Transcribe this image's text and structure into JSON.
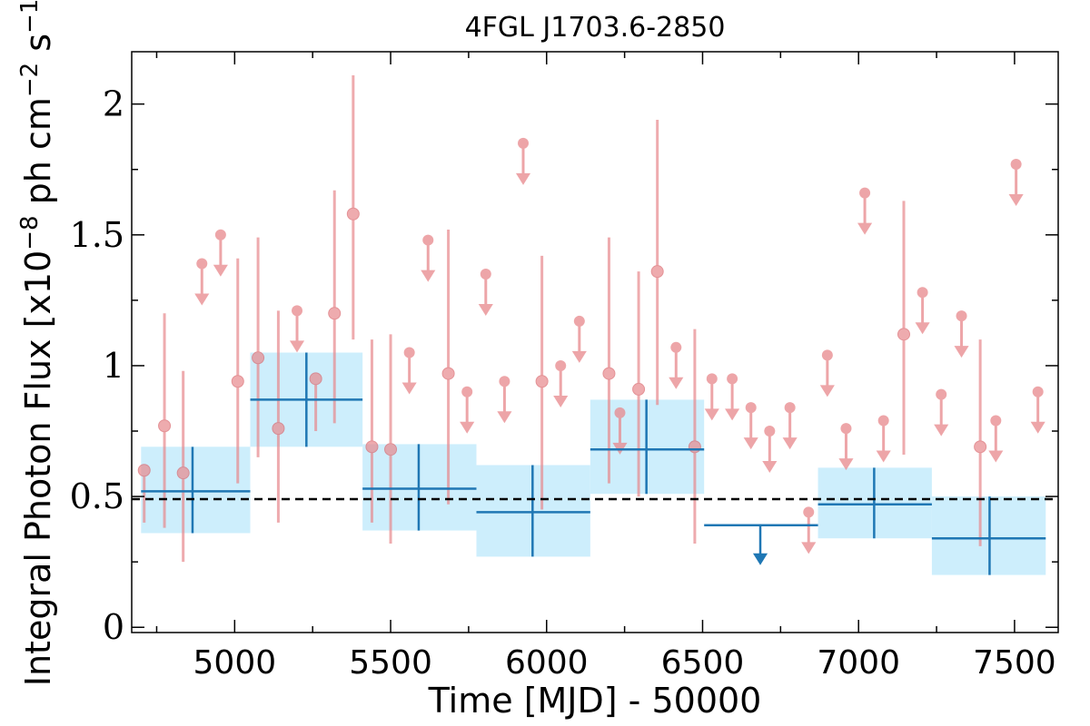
{
  "chart_data": {
    "type": "scatter",
    "title": "4FGL J1703.6-2850",
    "xlabel": "Time [MJD] - 50000",
    "ylabel": "Integral Photon Flux [x10",
    "ylabel_exp1": "−8",
    "ylabel_mid": " ph cm",
    "ylabel_exp2": "−2",
    "ylabel_mid2": " s",
    "ylabel_exp3": "−1",
    "ylabel_end": "]",
    "xlim": [
      4670,
      7640
    ],
    "ylim": [
      -0.02,
      2.2
    ],
    "x_ticks": [
      5000,
      5500,
      6000,
      6500,
      7000,
      7500
    ],
    "x_tick_labels": [
      "5000",
      "5500",
      "6000",
      "6500",
      "7000",
      "7500"
    ],
    "y_ticks": [
      0,
      0.5,
      1,
      1.5,
      2
    ],
    "y_tick_labels": [
      "0",
      "0.5",
      "1",
      "1.5",
      "2"
    ],
    "reference_flux": 0.49,
    "colors": {
      "fine_bins": "#e8888c",
      "coarse_bins": "#1f77b4",
      "coarse_band": "#cdeefc",
      "reference": "#000000"
    },
    "series": [
      {
        "kind": "fine_detections",
        "points": [
          {
            "x": 4710,
            "y": 0.6,
            "ylo": 0.4,
            "yhi": 0.6
          },
          {
            "x": 4775,
            "y": 0.77,
            "ylo": 0.38,
            "yhi": 1.2
          },
          {
            "x": 4835,
            "y": 0.59,
            "ylo": 0.25,
            "yhi": 0.98
          },
          {
            "x": 5010,
            "y": 0.94,
            "ylo": 0.55,
            "yhi": 1.41
          },
          {
            "x": 5075,
            "y": 1.03,
            "ylo": 0.65,
            "yhi": 1.49
          },
          {
            "x": 5140,
            "y": 0.76,
            "ylo": 0.4,
            "yhi": 1.21
          },
          {
            "x": 5260,
            "y": 0.95,
            "ylo": 0.75,
            "yhi": 0.95
          },
          {
            "x": 5320,
            "y": 1.2,
            "ylo": 0.78,
            "yhi": 1.67
          },
          {
            "x": 5380,
            "y": 1.58,
            "ylo": 1.1,
            "yhi": 2.11
          },
          {
            "x": 5440,
            "y": 0.69,
            "ylo": 0.4,
            "yhi": 1.1
          },
          {
            "x": 5500,
            "y": 0.68,
            "ylo": 0.32,
            "yhi": 1.12
          },
          {
            "x": 5685,
            "y": 0.97,
            "ylo": 0.47,
            "yhi": 1.52
          },
          {
            "x": 5985,
            "y": 0.94,
            "ylo": 0.45,
            "yhi": 1.42
          },
          {
            "x": 6200,
            "y": 0.97,
            "ylo": 0.55,
            "yhi": 1.49
          },
          {
            "x": 6295,
            "y": 0.91,
            "ylo": 0.5,
            "yhi": 1.36
          },
          {
            "x": 6355,
            "y": 1.36,
            "ylo": 0.85,
            "yhi": 1.94
          },
          {
            "x": 6475,
            "y": 0.69,
            "ylo": 0.32,
            "yhi": 1.14
          },
          {
            "x": 7145,
            "y": 1.12,
            "ylo": 0.66,
            "yhi": 1.63
          },
          {
            "x": 7390,
            "y": 0.69,
            "ylo": 0.31,
            "yhi": 1.1
          }
        ]
      },
      {
        "kind": "fine_upper_limits",
        "points": [
          {
            "x": 4895,
            "y": 1.39
          },
          {
            "x": 4955,
            "y": 1.5
          },
          {
            "x": 5200,
            "y": 1.21
          },
          {
            "x": 5560,
            "y": 1.05
          },
          {
            "x": 5620,
            "y": 1.48
          },
          {
            "x": 5745,
            "y": 0.9
          },
          {
            "x": 5805,
            "y": 1.35
          },
          {
            "x": 5865,
            "y": 0.94
          },
          {
            "x": 5925,
            "y": 1.85
          },
          {
            "x": 6045,
            "y": 1.0
          },
          {
            "x": 6105,
            "y": 1.17
          },
          {
            "x": 6235,
            "y": 0.82
          },
          {
            "x": 6415,
            "y": 1.07
          },
          {
            "x": 6530,
            "y": 0.95
          },
          {
            "x": 6595,
            "y": 0.95
          },
          {
            "x": 6655,
            "y": 0.84
          },
          {
            "x": 6715,
            "y": 0.75
          },
          {
            "x": 6780,
            "y": 0.84
          },
          {
            "x": 6840,
            "y": 0.44
          },
          {
            "x": 6900,
            "y": 1.04
          },
          {
            "x": 6960,
            "y": 0.76
          },
          {
            "x": 7020,
            "y": 1.66
          },
          {
            "x": 7080,
            "y": 0.79
          },
          {
            "x": 7205,
            "y": 1.28
          },
          {
            "x": 7265,
            "y": 0.89
          },
          {
            "x": 7330,
            "y": 1.19
          },
          {
            "x": 7440,
            "y": 0.79
          },
          {
            "x": 7505,
            "y": 1.77
          },
          {
            "x": 7575,
            "y": 0.9
          }
        ]
      },
      {
        "kind": "coarse_bins",
        "points": [
          {
            "x0": 4700,
            "x1": 5050,
            "x": 4865,
            "y": 0.52,
            "ylo": 0.36,
            "yhi": 0.69
          },
          {
            "x0": 5050,
            "x1": 5410,
            "x": 5230,
            "y": 0.87,
            "ylo": 0.69,
            "yhi": 1.05
          },
          {
            "x0": 5410,
            "x1": 5775,
            "x": 5590,
            "y": 0.53,
            "ylo": 0.37,
            "yhi": 0.7
          },
          {
            "x0": 5775,
            "x1": 6140,
            "x": 5955,
            "y": 0.44,
            "ylo": 0.27,
            "yhi": 0.62
          },
          {
            "x0": 6140,
            "x1": 6505,
            "x": 6320,
            "y": 0.68,
            "ylo": 0.51,
            "yhi": 0.87
          },
          {
            "x0": 6505,
            "x1": 6870,
            "x": 6685,
            "y": 0.39,
            "upper_limit": true
          },
          {
            "x0": 6870,
            "x1": 7235,
            "x": 7050,
            "y": 0.47,
            "ylo": 0.34,
            "yhi": 0.61
          },
          {
            "x0": 7235,
            "x1": 7600,
            "x": 7420,
            "y": 0.34,
            "ylo": 0.2,
            "yhi": 0.5
          }
        ]
      }
    ]
  }
}
